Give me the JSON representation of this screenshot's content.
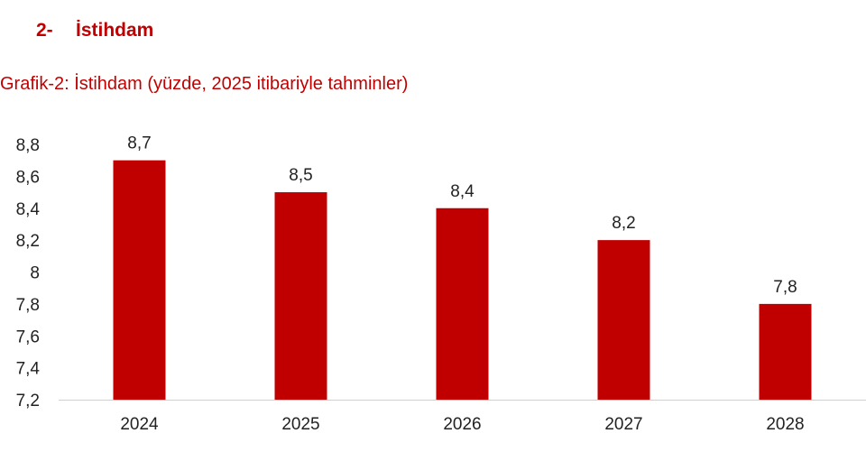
{
  "section": {
    "number": "2-",
    "title": "İstihdam"
  },
  "chart_data": {
    "type": "bar",
    "title": "Grafik-2: İstihdam (yüzde, 2025 itibariyle tahminler)",
    "categories": [
      "2024",
      "2025",
      "2026",
      "2027",
      "2028"
    ],
    "values": [
      8.7,
      8.5,
      8.4,
      8.2,
      7.8
    ],
    "value_labels": [
      "8,7",
      "8,5",
      "8,4",
      "8,2",
      "7,8"
    ],
    "yticks": [
      7.2,
      7.4,
      7.6,
      7.8,
      8,
      8.2,
      8.4,
      8.6,
      8.8
    ],
    "ytick_labels": [
      "7,2",
      "7,4",
      "7,6",
      "7,8",
      "8",
      "8,2",
      "8,4",
      "8,6",
      "8,8"
    ],
    "ylim": [
      7.2,
      8.8
    ],
    "xlabel": "",
    "ylabel": "",
    "grid": false,
    "legend": "none",
    "bar_color": "#c00000"
  }
}
